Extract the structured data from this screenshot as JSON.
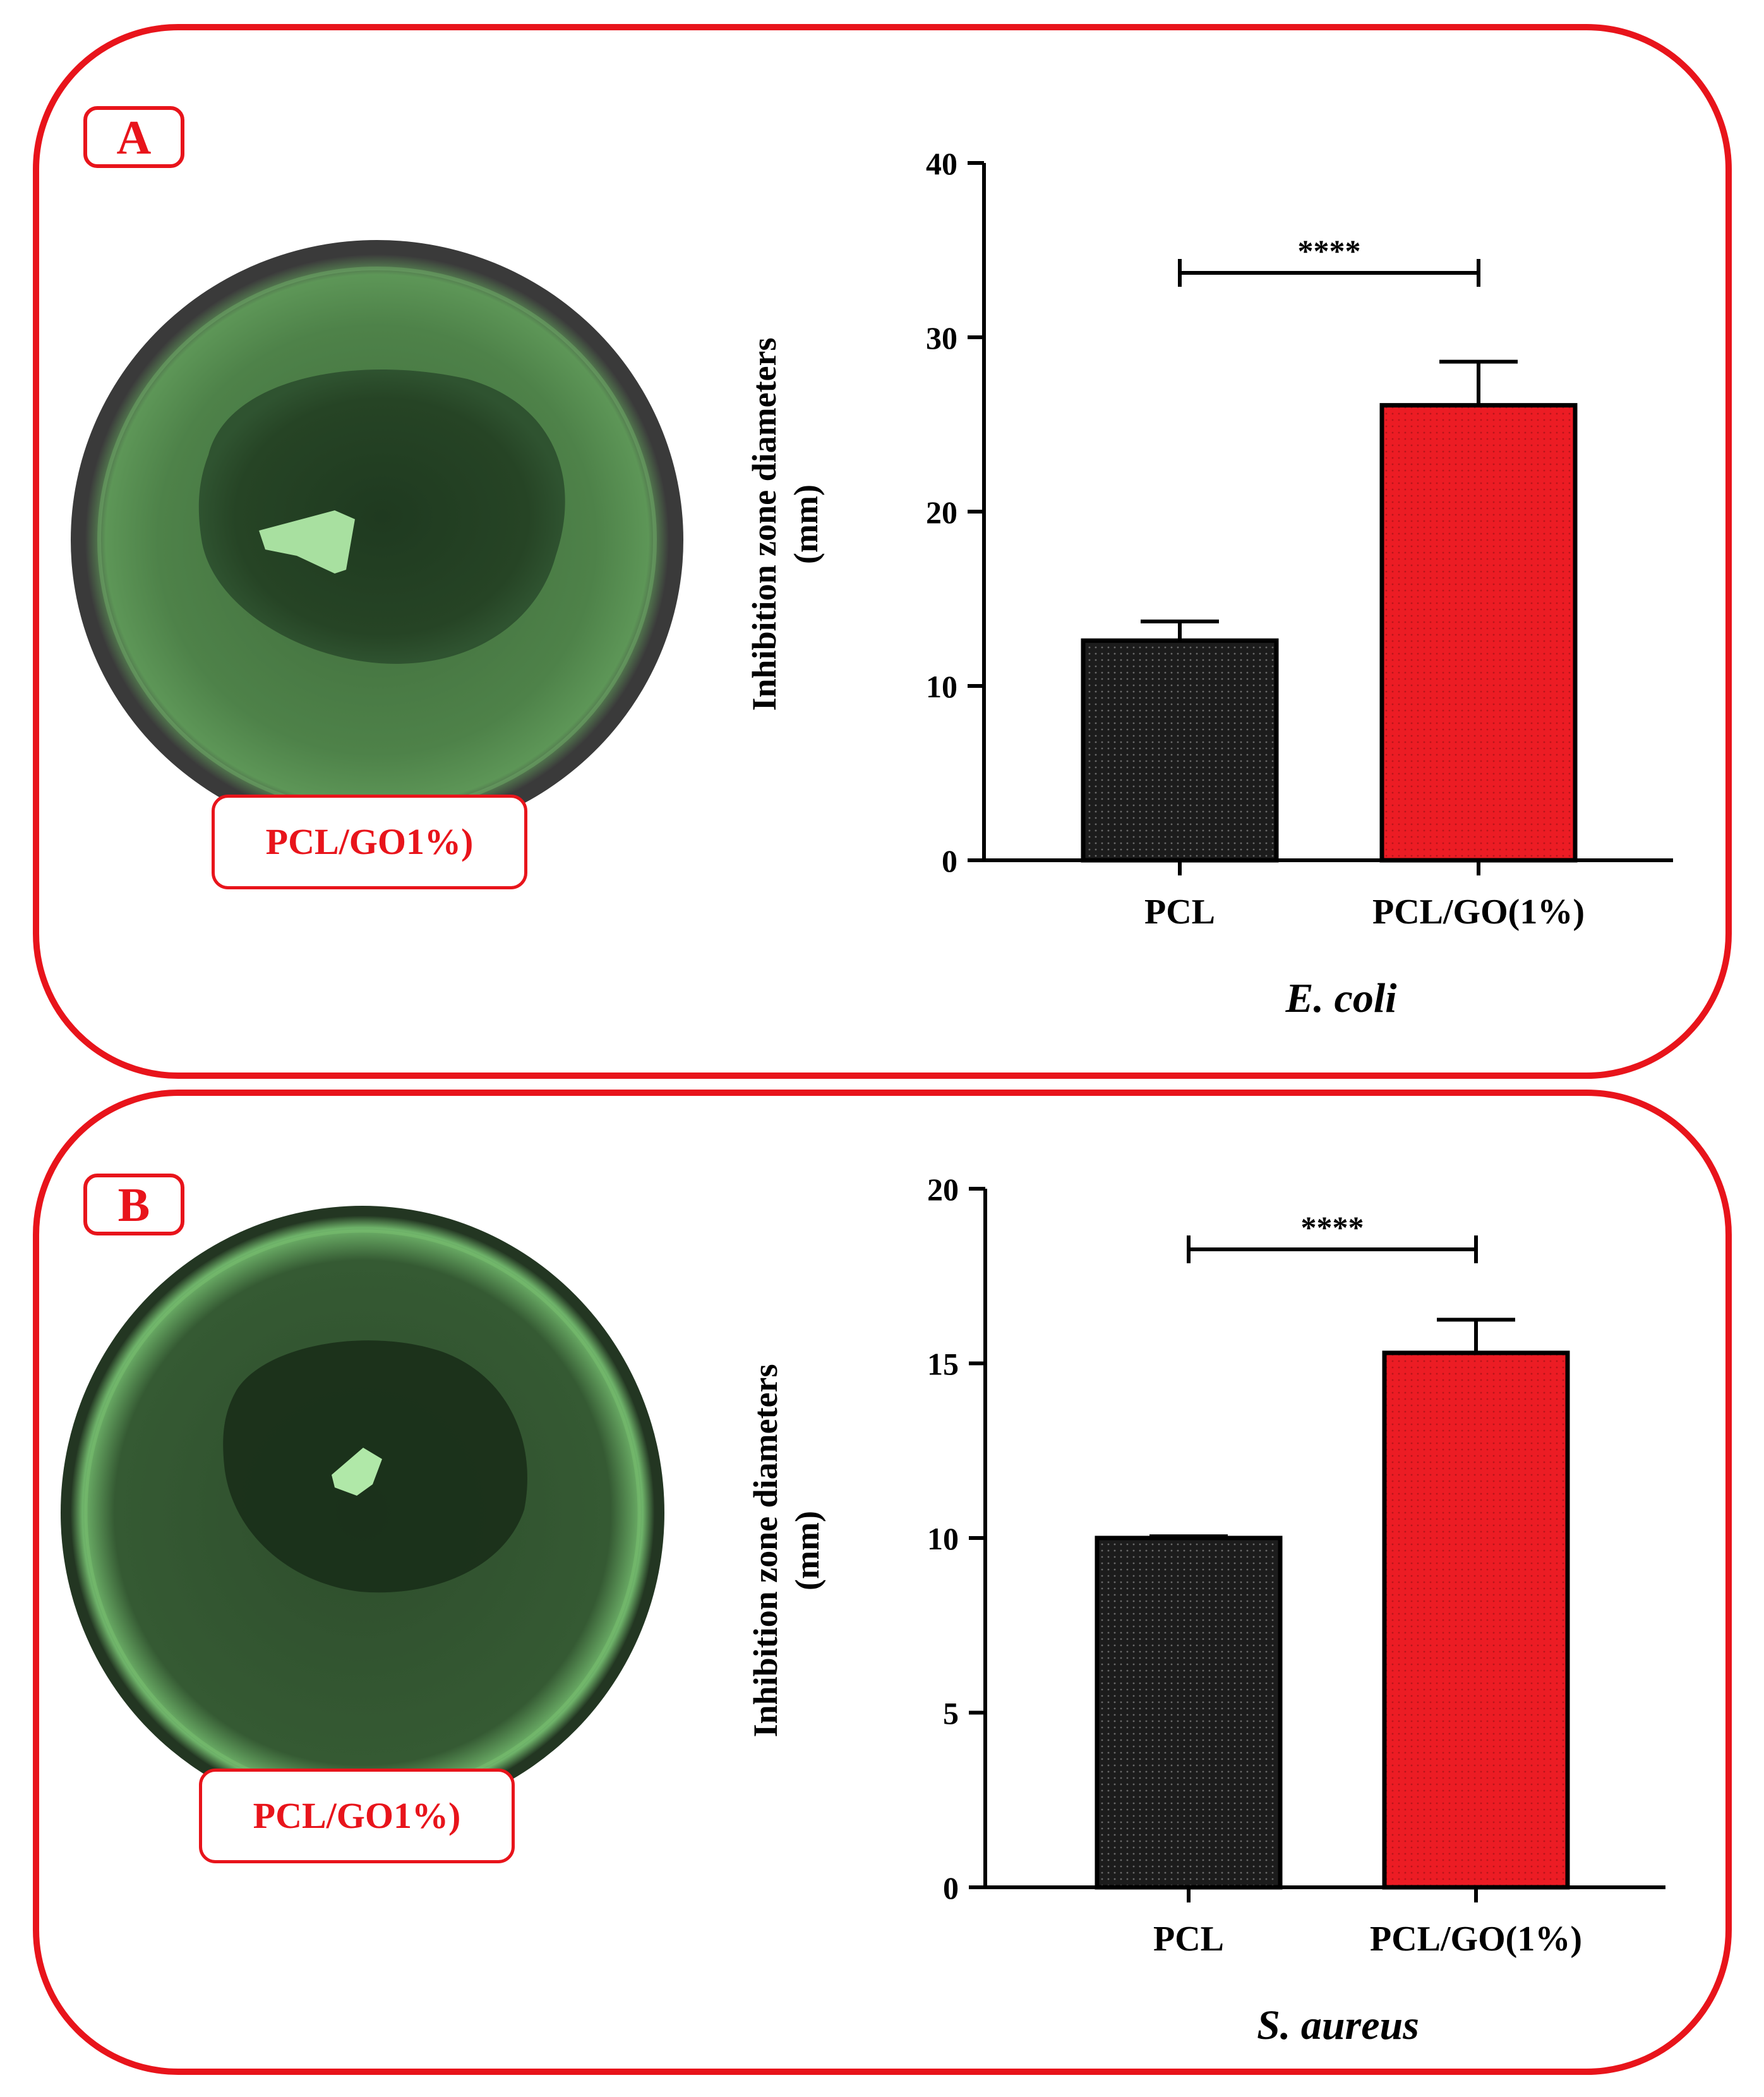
{
  "panels": [
    {
      "letter": "A",
      "dish_label": "PCL/GO1%)",
      "organism": "E. coli"
    },
    {
      "letter": "B",
      "dish_label": "PCL/GO1%)",
      "organism": "S. aureus"
    }
  ],
  "colors": {
    "frame": "#e8141b",
    "bar_pcl": "#1c1c1c",
    "bar_pclgo": "#ec1c24",
    "dish_green": "#4a7a45"
  },
  "chart_data": [
    {
      "type": "bar",
      "title": "",
      "xlabel": "E. coli",
      "ylabel": "Inhibition zone diameters",
      "ylabel_unit": "(mm)",
      "categories": [
        "PCL",
        "PCL/GO(1%)"
      ],
      "values": [
        12.6,
        26.1
      ],
      "errors": [
        1.1,
        2.5
      ],
      "ylim": [
        0,
        40
      ],
      "yticks": [
        0,
        10,
        20,
        30,
        40
      ],
      "significance": "****"
    },
    {
      "type": "bar",
      "title": "",
      "xlabel": "S. aureus",
      "ylabel": "Inhibition zone diameters",
      "ylabel_unit": "(mm)",
      "categories": [
        "PCL",
        "PCL/GO(1%)"
      ],
      "values": [
        10.0,
        15.3
      ],
      "errors": [
        0.05,
        0.95
      ],
      "ylim": [
        0,
        20
      ],
      "yticks": [
        0,
        5,
        10,
        15,
        20
      ],
      "significance": "****"
    }
  ]
}
